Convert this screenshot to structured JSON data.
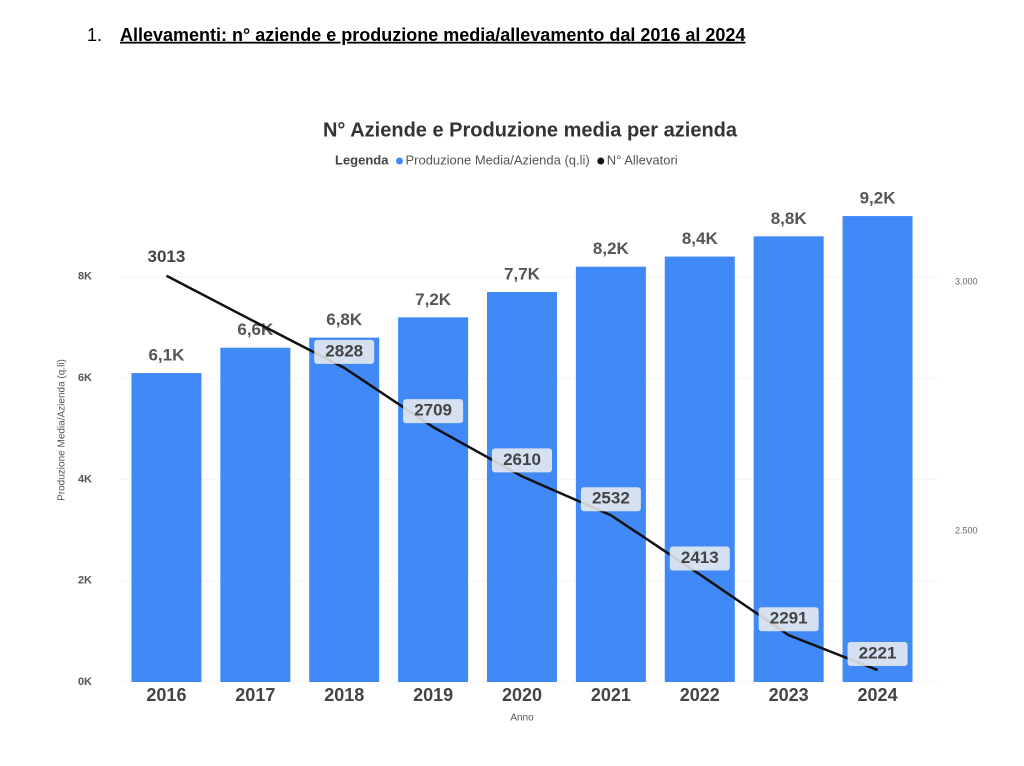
{
  "heading": {
    "number": "1.",
    "text": "Allevamenti: n° aziende e produzione media/allevamento dal 2016 al 2024"
  },
  "chart_data": {
    "type": "bar_line",
    "title": "N° Aziende e Produzione media per azienda",
    "legend_title": "Legenda",
    "x_label": "Anno",
    "y_label": "Produzione Media/Azienda (q.li)",
    "categories": [
      "2016",
      "2017",
      "2018",
      "2019",
      "2020",
      "2021",
      "2022",
      "2023",
      "2024"
    ],
    "series": [
      {
        "name": "Produzione Media/Azienda (q.li)",
        "color": "#4189f7",
        "type": "bar",
        "values": [
          6100,
          6600,
          6800,
          7200,
          7700,
          8200,
          8400,
          8800,
          9200
        ],
        "value_labels": [
          "6,1K",
          "6,6K",
          "6,8K",
          "7,2K",
          "7,7K",
          "8,2K",
          "8,4K",
          "8,8K",
          "9,2K"
        ]
      },
      {
        "name": "N° Allevatori",
        "color": "#111111",
        "type": "line",
        "axis": "y2",
        "values": [
          3013,
          2920,
          2828,
          2709,
          2610,
          2532,
          2413,
          2291,
          2221
        ],
        "value_labels": [
          "3013",
          null,
          "2828",
          "2709",
          "2610",
          "2532",
          "2413",
          "2291",
          "2221"
        ]
      }
    ],
    "ylim": [
      0,
      9300
    ],
    "yticks": [
      {
        "value": 0,
        "label": "0K"
      },
      {
        "value": 2000,
        "label": "2K"
      },
      {
        "value": 4000,
        "label": "4K"
      },
      {
        "value": 6000,
        "label": "6K"
      },
      {
        "value": 8000,
        "label": "8K"
      }
    ],
    "y2lim": [
      2197,
      3143
    ],
    "y2ticks": [
      {
        "value": 2500,
        "label": "2.500"
      },
      {
        "value": 3000,
        "label": "3.000"
      }
    ],
    "grid": true
  }
}
